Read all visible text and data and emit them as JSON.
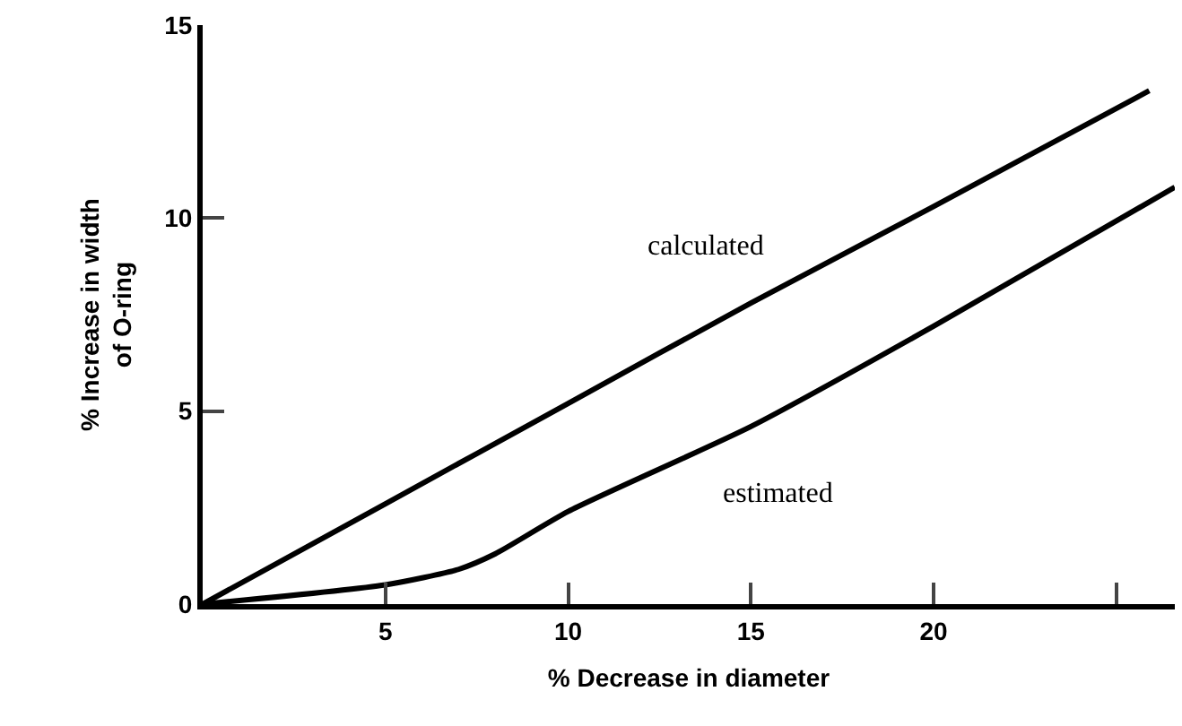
{
  "chart_data": {
    "type": "line",
    "xlabel": "% Decrease in diameter",
    "ylabel": "% Increase in width\nof O-ring",
    "series": [
      {
        "name": "calculated",
        "color": "#000000",
        "x": [
          0,
          5,
          10,
          15,
          20,
          25.9
        ],
        "values": [
          0,
          2.6,
          5.2,
          7.8,
          10.3,
          13.3
        ]
      },
      {
        "name": "estimated",
        "color": "#000000",
        "x": [
          0,
          5,
          7,
          8,
          10,
          15,
          20,
          26.6
        ],
        "values": [
          0,
          0.5,
          0.9,
          1.3,
          2.4,
          4.6,
          7.2,
          10.8
        ]
      }
    ],
    "xlim": [
      0,
      26.6
    ],
    "ylim": [
      0,
      15
    ],
    "xticks": [
      5,
      10,
      15,
      20,
      {
        "value": 25,
        "label": null
      }
    ],
    "yticks": [
      0,
      5,
      10,
      15
    ],
    "legend": false,
    "marker": "none",
    "line_style": "solid"
  }
}
